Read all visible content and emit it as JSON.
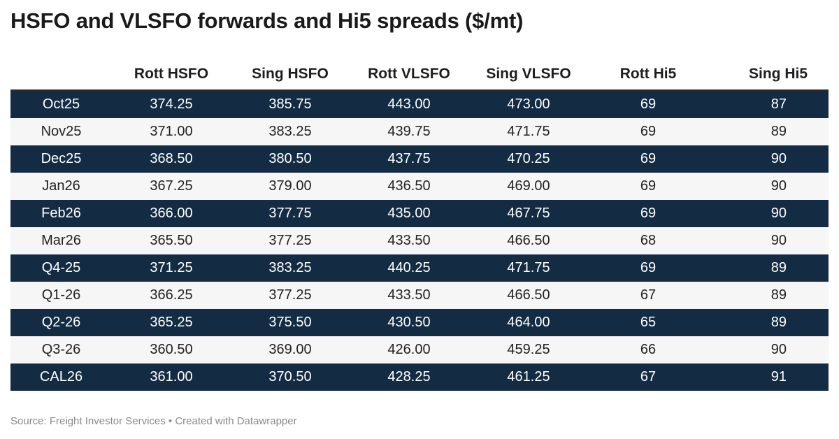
{
  "chart_data": {
    "type": "table",
    "title": "HSFO and VLSFO forwards and Hi5 spreads ($/mt)",
    "columns": [
      "",
      "Rott HSFO",
      "Sing HSFO",
      "Rott VLSFO",
      "Sing VLSFO",
      "Rott Hi5",
      "Sing Hi5"
    ],
    "rows": [
      [
        "Oct25",
        "374.25",
        "385.75",
        "443.00",
        "473.00",
        "69",
        "87"
      ],
      [
        "Nov25",
        "371.00",
        "383.25",
        "439.75",
        "471.75",
        "69",
        "89"
      ],
      [
        "Dec25",
        "368.50",
        "380.50",
        "437.75",
        "470.25",
        "69",
        "90"
      ],
      [
        "Jan26",
        "367.25",
        "379.00",
        "436.50",
        "469.00",
        "69",
        "90"
      ],
      [
        "Feb26",
        "366.00",
        "377.75",
        "435.00",
        "467.75",
        "69",
        "90"
      ],
      [
        "Mar26",
        "365.50",
        "377.25",
        "433.50",
        "466.50",
        "68",
        "90"
      ],
      [
        "Q4-25",
        "371.25",
        "383.25",
        "440.25",
        "471.75",
        "69",
        "89"
      ],
      [
        "Q1-26",
        "366.25",
        "377.25",
        "433.50",
        "466.50",
        "67",
        "89"
      ],
      [
        "Q2-26",
        "365.25",
        "375.50",
        "430.50",
        "464.00",
        "65",
        "89"
      ],
      [
        "Q3-26",
        "360.50",
        "369.00",
        "426.00",
        "459.25",
        "66",
        "90"
      ],
      [
        "CAL26",
        "361.00",
        "370.50",
        "428.25",
        "461.25",
        "67",
        "91"
      ]
    ],
    "footer": "Source: Freight Investor Services • Created with Datawrapper",
    "colors": {
      "dark_row": "#132b43",
      "light_row": "#f6f6f6",
      "dark_text": "#ffffff",
      "light_text": "#222222"
    }
  }
}
